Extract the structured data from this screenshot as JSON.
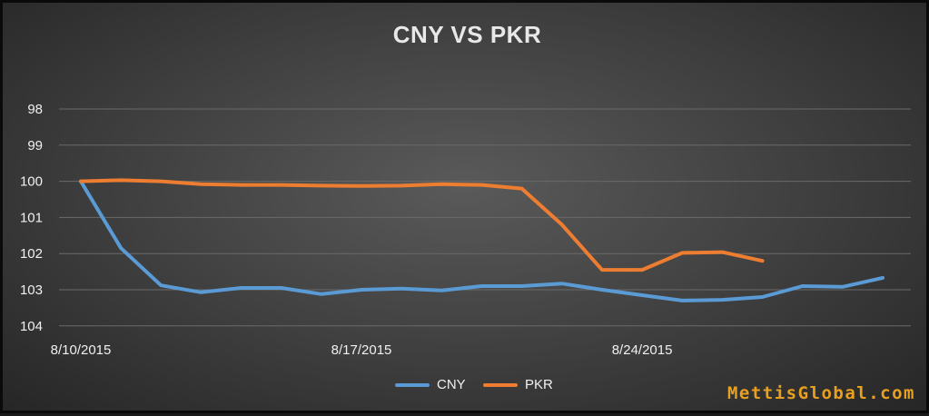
{
  "chart_data": {
    "type": "line",
    "title": "CNY VS PKR",
    "xlabel": "",
    "ylabel": "",
    "y_reversed": true,
    "ylim": [
      98,
      104
    ],
    "y_ticks": [
      "98",
      "99",
      "100",
      "101",
      "102",
      "103",
      "104"
    ],
    "x": [
      "8/10/2015",
      "8/11/2015",
      "8/12/2015",
      "8/13/2015",
      "8/14/2015",
      "8/15/2015",
      "8/16/2015",
      "8/17/2015",
      "8/18/2015",
      "8/19/2015",
      "8/20/2015",
      "8/21/2015",
      "8/22/2015",
      "8/23/2015",
      "8/24/2015",
      "8/25/2015",
      "8/26/2015",
      "8/27/2015",
      "8/28/2015",
      "8/29/2015",
      "8/30/2015",
      "8/31/2015"
    ],
    "x_ticks": [
      "8/10/2015",
      "8/17/2015",
      "8/24/2015"
    ],
    "grid": true,
    "legend_position": "bottom",
    "series": [
      {
        "name": "CNY",
        "color": "#5b9bd5",
        "values": [
          100,
          101.85,
          102.88,
          103.07,
          102.95,
          102.95,
          103.12,
          103.0,
          102.97,
          103.02,
          102.9,
          102.9,
          102.83,
          103.0,
          103.15,
          103.3,
          103.28,
          103.2,
          102.9,
          102.92,
          102.67,
          null
        ]
      },
      {
        "name": "PKR",
        "color": "#ed7d31",
        "values": [
          100,
          99.97,
          100.0,
          100.08,
          100.1,
          100.1,
          100.12,
          100.13,
          100.12,
          100.08,
          100.1,
          100.2,
          101.2,
          102.45,
          102.45,
          101.98,
          101.96,
          102.2,
          null,
          null,
          null,
          null
        ]
      }
    ]
  },
  "watermark": "MettisGlobal.com"
}
